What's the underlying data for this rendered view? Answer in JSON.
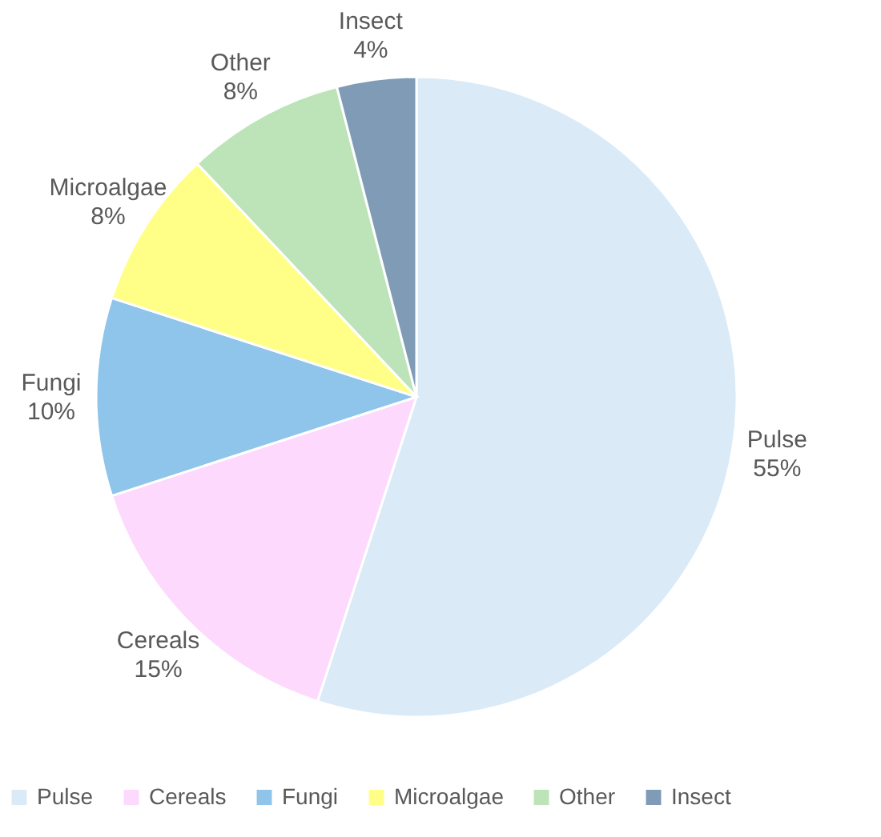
{
  "chart_data": {
    "type": "pie",
    "categories": [
      "Pulse",
      "Cereals",
      "Fungi",
      "Microalgae",
      "Other",
      "Insect"
    ],
    "values": [
      55,
      15,
      10,
      8,
      8,
      4
    ],
    "value_labels": [
      "55%",
      "15%",
      "10%",
      "8%",
      "8%",
      "4%"
    ],
    "colors": [
      "#daeaf7",
      "#fdd9fd",
      "#8fc5ea",
      "#ffff88",
      "#bde3b9",
      "#7f9bb6"
    ],
    "legend": "bottom"
  }
}
